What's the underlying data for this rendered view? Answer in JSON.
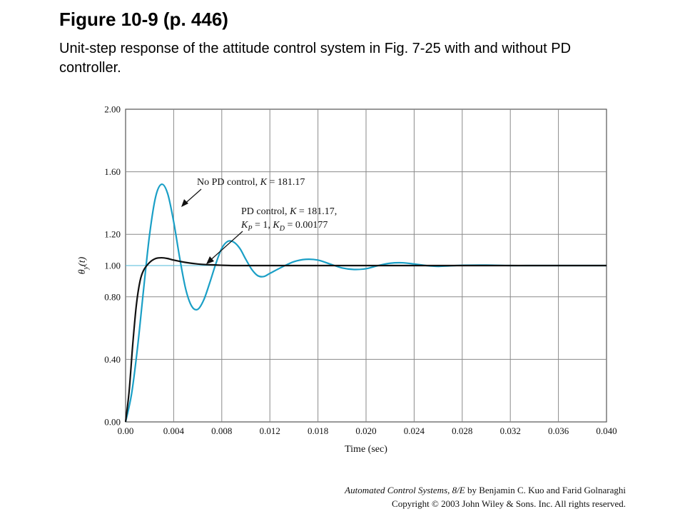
{
  "figure": {
    "title": "Figure 10-9  (p. 446)",
    "caption": "Unit-step response of the attitude control system in Fig. 7-25 with and without PD controller."
  },
  "footer": {
    "book_title": "Automated Control Systems, 8/E",
    "authors": " by Benjamin C. Kuo and Farid Golnaraghi",
    "copyright": "Copyright © 2003 John Wiley  & Sons. Inc. All rights reserved."
  },
  "colors": {
    "no_pd": "#1a9fc6",
    "pd": "#111111",
    "grid": "#8a8a8a",
    "reference": "#4fb8d8"
  },
  "chart_data": {
    "type": "line",
    "xlabel": "Time (sec)",
    "ylabel": "θy(t)",
    "xlim": [
      0,
      0.04
    ],
    "ylim": [
      0,
      2.0
    ],
    "xtick_labels": [
      "0.00",
      "0.004",
      "0.008",
      "0.012",
      "0.018",
      "0.020",
      "0.024",
      "0.028",
      "0.032",
      "0.036",
      "0.040"
    ],
    "ytick_labels": [
      {
        "value": 2.0,
        "label": "2.00"
      },
      {
        "value": 1.6,
        "label": "1.60"
      },
      {
        "value": 1.2,
        "label": "1.20"
      },
      {
        "value": 1.0,
        "label": "1.00"
      },
      {
        "value": 0.8,
        "label": "0.80"
      },
      {
        "value": 0.4,
        "label": "0.40"
      },
      {
        "value": 0.0,
        "label": "0.00"
      }
    ],
    "grid": true,
    "reference_line": 1.0,
    "series": [
      {
        "name": "No PD control, K = 181.17",
        "x": [
          0,
          0.0005,
          0.001,
          0.0015,
          0.002,
          0.0025,
          0.003,
          0.0035,
          0.004,
          0.0045,
          0.005,
          0.0055,
          0.006,
          0.0065,
          0.007,
          0.0075,
          0.008,
          0.0085,
          0.009,
          0.0095,
          0.01,
          0.0105,
          0.011,
          0.0115,
          0.012,
          0.013,
          0.014,
          0.015,
          0.016,
          0.017,
          0.018,
          0.019,
          0.02,
          0.021,
          0.022,
          0.023,
          0.024,
          0.025,
          0.026,
          0.027,
          0.028,
          0.03,
          0.032,
          0.034,
          0.036,
          0.038,
          0.04
        ],
        "y": [
          0,
          0.18,
          0.48,
          0.85,
          1.2,
          1.44,
          1.52,
          1.46,
          1.28,
          1.05,
          0.85,
          0.74,
          0.72,
          0.78,
          0.89,
          1.01,
          1.11,
          1.155,
          1.15,
          1.11,
          1.04,
          0.975,
          0.935,
          0.93,
          0.95,
          0.99,
          1.025,
          1.04,
          1.035,
          1.01,
          0.985,
          0.975,
          0.98,
          1.0,
          1.015,
          1.018,
          1.01,
          1.0,
          0.995,
          0.998,
          1.002,
          1.003,
          1.0,
          1.0,
          1.0,
          1.0,
          1.0
        ]
      },
      {
        "name": "PD control, K = 181.17, KP = 1, KD = 0.00177",
        "x": [
          0,
          0.0003,
          0.0006,
          0.0009,
          0.0012,
          0.0015,
          0.002,
          0.0025,
          0.003,
          0.0035,
          0.004,
          0.005,
          0.006,
          0.007,
          0.008,
          0.009,
          0.01,
          0.012,
          0.014,
          0.016,
          0.018,
          0.02,
          0.024,
          0.028,
          0.032,
          0.036,
          0.04
        ],
        "y": [
          0,
          0.2,
          0.5,
          0.75,
          0.9,
          0.97,
          1.02,
          1.045,
          1.05,
          1.045,
          1.035,
          1.02,
          1.01,
          1.005,
          1.002,
          1.0,
          1.0,
          1.0,
          1.0,
          1.0,
          1.0,
          1.0,
          1.0,
          1.0,
          1.0,
          1.0,
          1.0
        ]
      }
    ],
    "annotations": [
      {
        "text": "No PD control, K = 181.17"
      },
      {
        "line1": "PD control, K = 181.17,",
        "line2": "KP = 1, KD = 0.00177"
      }
    ]
  }
}
